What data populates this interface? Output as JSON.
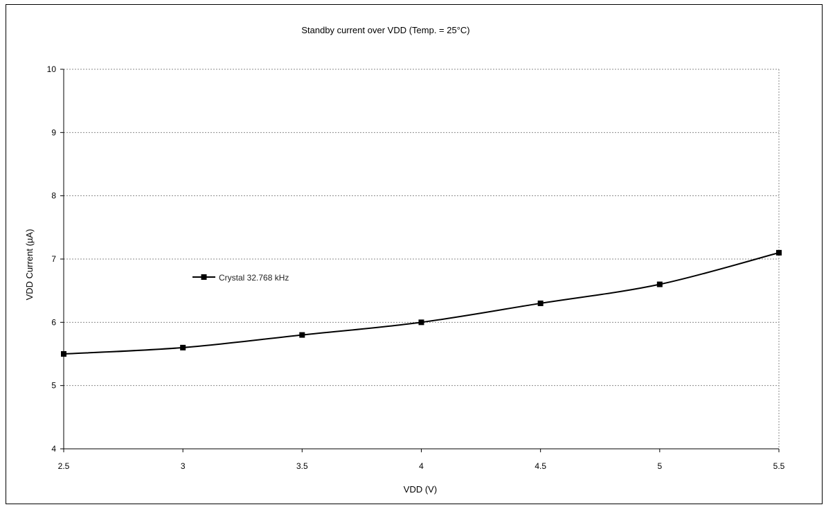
{
  "chart_data": {
    "type": "line",
    "title": "Standby current over VDD (Temp. = 25°C)",
    "xlabel": "VDD (V)",
    "ylabel": "VDD Current (µA)",
    "xlim": [
      2.5,
      5.5
    ],
    "ylim": [
      4,
      10
    ],
    "x_ticks": [
      "2.5",
      "3",
      "3.5",
      "4",
      "4.5",
      "5",
      "5.5"
    ],
    "y_ticks": [
      "4",
      "5",
      "6",
      "7",
      "8",
      "9",
      "10"
    ],
    "grid": "horizontal",
    "legend_position": "middle-left",
    "series": [
      {
        "name": "Crystal 32.768 kHz",
        "color": "#000000",
        "marker": "square",
        "x": [
          2.5,
          3,
          3.5,
          4,
          4.5,
          5,
          5.5
        ],
        "y": [
          5.5,
          5.6,
          5.8,
          6.0,
          6.3,
          6.6,
          7.1
        ]
      }
    ]
  }
}
